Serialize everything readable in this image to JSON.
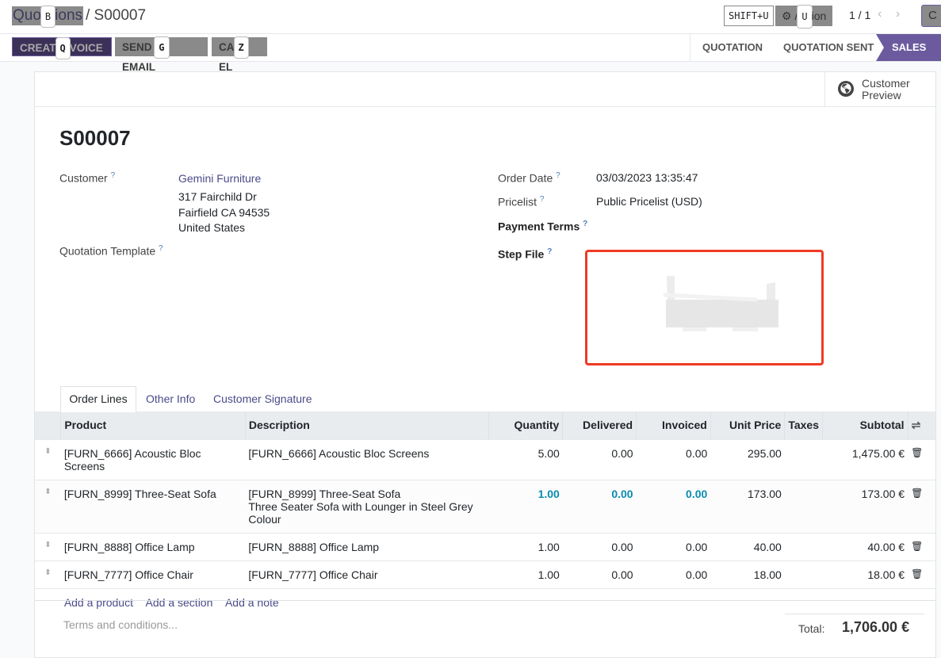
{
  "breadcrumb": {
    "parent": "Quo",
    "parent_end": "ions",
    "parent_key": "B",
    "current": "/ S00007"
  },
  "header": {
    "shift_key": "SHIFT+U",
    "action_pre": "/",
    "action_key": "U",
    "action_post": "ion",
    "pager": "1 / 1",
    "right_btn": "C"
  },
  "actions": {
    "create_invoice_a": "CREAT",
    "create_invoice_key": "Q",
    "create_invoice_b": "VOICE",
    "send_email_a": "SEND",
    "send_email_key": "G",
    "send_email_b": "EMAIL",
    "cancel_a": "CA",
    "cancel_key": "Z",
    "cancel_b": "EL"
  },
  "stages": {
    "items": [
      "QUOTATION",
      "QUOTATION SENT",
      "SALES ORDER"
    ],
    "active": "SALES ORDER",
    "accent": "#6b5b9e"
  },
  "customer_preview": {
    "line1": "Customer",
    "line2": "Preview"
  },
  "form": {
    "title": "S00007",
    "customer_label": "Customer",
    "customer_name": "Gemini Furniture",
    "address": [
      "317 Fairchild Dr",
      "Fairfield CA 94535",
      "United States"
    ],
    "quotation_template_label": "Quotation Template",
    "order_date_label": "Order Date",
    "order_date": "03/03/2023 13:35:47",
    "pricelist_label": "Pricelist",
    "pricelist": "Public Pricelist (USD)",
    "payment_terms_label": "Payment Terms",
    "step_file_label": "Step File",
    "help": "?"
  },
  "tabs": [
    {
      "label": "Order Lines",
      "active": true
    },
    {
      "label": "Other Info"
    },
    {
      "label": "Customer Signature"
    }
  ],
  "table": {
    "headers": [
      "Product",
      "Description",
      "Quantity",
      "Delivered",
      "Invoiced",
      "Unit Price",
      "Taxes",
      "Subtotal"
    ],
    "rows": [
      {
        "product": "[FURN_6666] Acoustic Bloc Screens",
        "description": [
          "[FURN_6666] Acoustic Bloc Screens"
        ],
        "quantity": "5.00",
        "delivered": "0.00",
        "invoiced": "0.00",
        "unit_price": "295.00",
        "taxes": "",
        "subtotal": "1,475.00 €"
      },
      {
        "product": "[FURN_8999] Three-Seat Sofa",
        "description": [
          "[FURN_8999] Three-Seat Sofa",
          "Three Seater Sofa with Lounger in Steel Grey",
          "Colour"
        ],
        "quantity": "1.00",
        "delivered": "0.00",
        "invoiced": "0.00",
        "unit_price": "173.00",
        "taxes": "",
        "subtotal": "173.00 €",
        "highlight": true
      },
      {
        "product": "[FURN_8888] Office Lamp",
        "description": [
          "[FURN_8888] Office Lamp"
        ],
        "quantity": "1.00",
        "delivered": "0.00",
        "invoiced": "0.00",
        "unit_price": "40.00",
        "taxes": "",
        "subtotal": "40.00 €"
      },
      {
        "product": "[FURN_7777] Office Chair",
        "description": [
          "[FURN_7777] Office Chair"
        ],
        "quantity": "1.00",
        "delivered": "0.00",
        "invoiced": "0.00",
        "unit_price": "18.00",
        "taxes": "",
        "subtotal": "18.00 €"
      }
    ],
    "add_product": "Add a product",
    "add_section": "Add a section",
    "add_note": "Add a note"
  },
  "footer": {
    "terms_placeholder": "Terms and conditions...",
    "total_label": "Total:",
    "total": "1,706.00 €"
  }
}
